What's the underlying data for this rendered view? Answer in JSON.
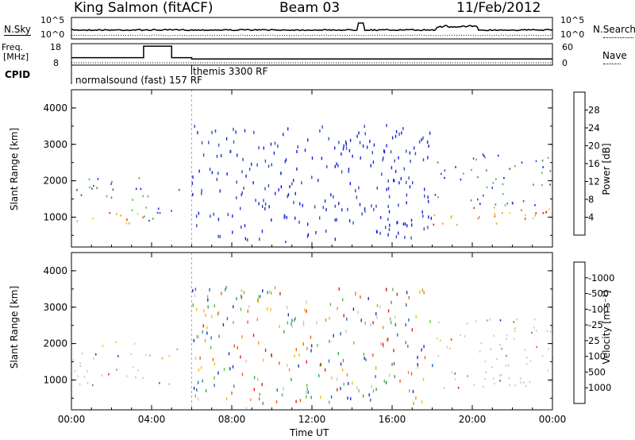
{
  "header": {
    "title": "King Salmon (fitACF)",
    "beam": "Beam 03",
    "date": "11/Feb/2012"
  },
  "nsky_panel": {
    "left_label": "N.Sky",
    "right_label": "N.Search",
    "ticks_left": [
      "10^5",
      "10^0"
    ],
    "ticks_right": [
      "10^5",
      "10^0"
    ]
  },
  "freq_panel": {
    "left_label_line1": "Freq.",
    "left_label_line2": "[MHz]",
    "right_label": "Nave",
    "ticks_left": [
      "18",
      "8"
    ],
    "ticks_right": [
      "60",
      "0"
    ]
  },
  "cpid": {
    "label": "CPID",
    "program1": "normalsound (fast) 157 RF",
    "program2": "themis 3300 RF"
  },
  "chart_data": [
    {
      "type": "heatmap",
      "title": "Power",
      "ylabel": "Slant Range [km]",
      "xlabel": "",
      "x_ticks": [
        "00:00",
        "04:00",
        "08:00",
        "12:00",
        "16:00",
        "20:00",
        "00:00"
      ],
      "y_ticks": [
        1000,
        2000,
        3000,
        4000
      ],
      "ylim": [
        180,
        4500
      ],
      "colorbar": {
        "label": "Power [dB]",
        "ticks": [
          "4",
          "8",
          "12",
          "16",
          "20",
          "24",
          "28"
        ],
        "colors": [
          "#1a1ae8",
          "#2c4fb2",
          "#4a8a5c",
          "#4fb848",
          "#e8d020",
          "#f0a020",
          "#f06418",
          "#e81818"
        ]
      },
      "regions": [
        {
          "t": [
            0.0,
            3.6
          ],
          "range": [
            850,
            1200
          ],
          "level": "high"
        },
        {
          "t": [
            0.0,
            3.6
          ],
          "range": [
            1200,
            2100
          ],
          "level": "mid"
        },
        {
          "t": [
            3.6,
            5.4
          ],
          "range": [
            800,
            1900
          ],
          "level": "mid"
        },
        {
          "t": [
            18.0,
            24.0
          ],
          "range": [
            800,
            1300
          ],
          "level": "high"
        },
        {
          "t": [
            18.0,
            24.0
          ],
          "range": [
            1300,
            2800
          ],
          "level": "mid"
        },
        {
          "t": [
            18.5,
            19.8
          ],
          "range": [
            2800,
            3500
          ],
          "level": "low"
        },
        {
          "t": [
            0.0,
            24.0
          ],
          "range": [
            180,
            350
          ],
          "level": "low"
        }
      ]
    },
    {
      "type": "heatmap",
      "title": "Velocity",
      "ylabel": "Slant Range [km]",
      "xlabel": "Time UT",
      "x_ticks": [
        "00:00",
        "04:00",
        "08:00",
        "12:00",
        "16:00",
        "20:00",
        "00:00"
      ],
      "y_ticks": [
        1000,
        2000,
        3000,
        4000
      ],
      "ylim": [
        180,
        4500
      ],
      "colorbar": {
        "label": "Velocity [m s⁻¹]",
        "ticks": [
          "1000",
          "500",
          "100",
          "25",
          "-25",
          "-100",
          "-500",
          "-1000"
        ],
        "colors": [
          "#1a30c8",
          "#2c6ca8",
          "#3c9a5c",
          "#5ac040",
          "#c8c8c8",
          "#f0c020",
          "#f09020",
          "#f05818",
          "#e81818"
        ]
      }
    }
  ]
}
